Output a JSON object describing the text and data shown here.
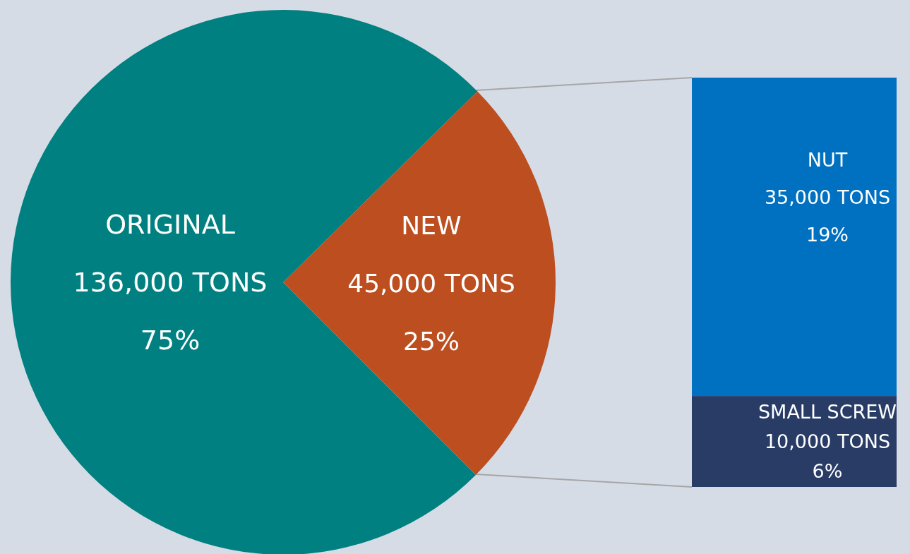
{
  "chart_data": [
    {
      "type": "pie",
      "categories": [
        "ORIGINAL",
        "NEW"
      ],
      "values": [
        136000,
        45000
      ],
      "colors": [
        "#008080",
        "#bc4e1f"
      ],
      "value_labels": [
        "136,000 TONS\n75%",
        "45,000 TONS\n25%"
      ]
    },
    {
      "type": "bar",
      "stacked": true,
      "categories": [
        null
      ],
      "series": [
        {
          "name": "SMALL SCREW",
          "color": "#283c66",
          "values": [
            10000
          ],
          "value_labels": [
            "10,000  TONS\n6%"
          ]
        },
        {
          "name": "NUT",
          "color": "#0070c0",
          "values": [
            35000
          ],
          "value_labels": [
            "35,000 TONS\n19%"
          ]
        }
      ]
    }
  ]
}
